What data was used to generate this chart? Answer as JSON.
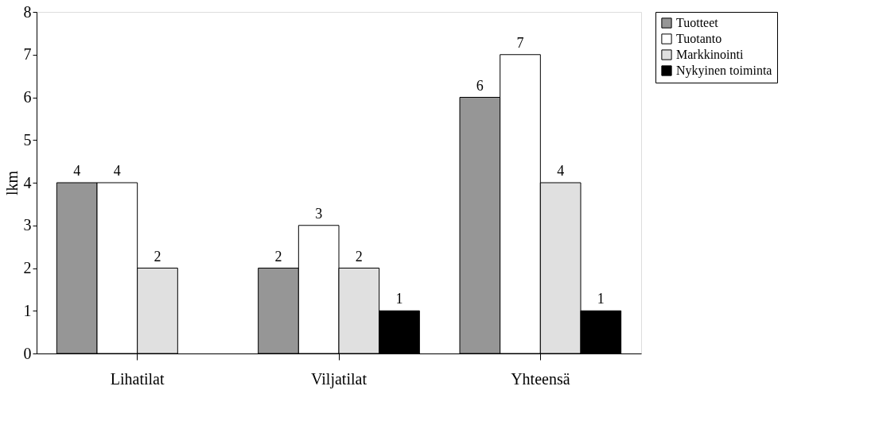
{
  "chart_data": {
    "type": "bar",
    "ylabel": "lkm",
    "categories": [
      "Lihatilat",
      "Viljatilat",
      "Yhteensä"
    ],
    "series": [
      {
        "name": "Tuotteet",
        "color": "#969696",
        "values": [
          4,
          2,
          6
        ]
      },
      {
        "name": "Tuotanto",
        "color": "#ffffff",
        "values": [
          4,
          3,
          7
        ]
      },
      {
        "name": "Markkinointi",
        "color": "#e0e0e0",
        "values": [
          2,
          2,
          4
        ]
      },
      {
        "name": "Nykyinen toiminta",
        "color": "#000000",
        "values": [
          null,
          1,
          1
        ]
      }
    ],
    "ylim": [
      0,
      8
    ],
    "yticks": [
      0,
      1,
      2,
      3,
      4,
      5,
      6,
      7,
      8
    ],
    "data_labels": true,
    "legend": "right",
    "grid": false
  }
}
